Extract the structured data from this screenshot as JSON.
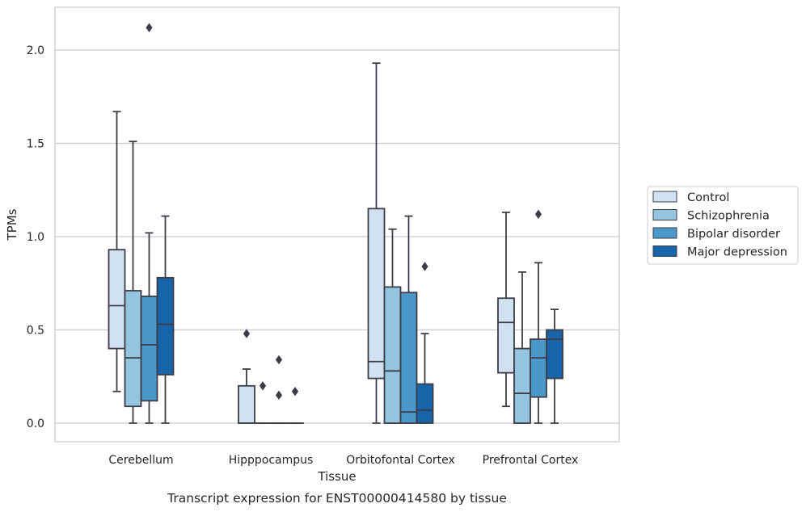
{
  "chart_data": {
    "type": "box",
    "xlabel": "Tissue",
    "ylabel": "TPMs",
    "caption": "Transcript expression for ENST00000414580 by tissue",
    "ylim": [
      -0.1,
      2.25
    ],
    "yticks": [
      0.0,
      0.5,
      1.0,
      1.5,
      2.0
    ],
    "ytick_labels": [
      "0.0",
      "0.5",
      "1.0",
      "1.5",
      "2.0"
    ],
    "grid": "horizontal",
    "legend_position": "right",
    "categories": [
      "Cerebellum",
      "Hipppocampus",
      "Orbitofontal Cortex",
      "Prefrontal Cortex"
    ],
    "series": [
      {
        "name": "Control",
        "color": "#d0e1f2",
        "boxes": [
          {
            "q1": 0.4,
            "median": 0.63,
            "q3": 0.93,
            "whisker_low": 0.17,
            "whisker_high": 1.67,
            "outliers": []
          },
          {
            "q1": 0.0,
            "median": 0.0,
            "q3": 0.2,
            "whisker_low": 0.0,
            "whisker_high": 0.29,
            "outliers": [
              0.48
            ]
          },
          {
            "q1": 0.24,
            "median": 0.33,
            "q3": 1.15,
            "whisker_low": 0.0,
            "whisker_high": 1.93,
            "outliers": []
          },
          {
            "q1": 0.27,
            "median": 0.54,
            "q3": 0.67,
            "whisker_low": 0.09,
            "whisker_high": 1.13,
            "outliers": []
          }
        ]
      },
      {
        "name": "Schizophrenia",
        "color": "#94c4df",
        "boxes": [
          {
            "q1": 0.09,
            "median": 0.35,
            "q3": 0.71,
            "whisker_low": 0.0,
            "whisker_high": 1.51,
            "outliers": []
          },
          {
            "q1": 0.0,
            "median": 0.0,
            "q3": 0.0,
            "whisker_low": 0.0,
            "whisker_high": 0.0,
            "outliers": [
              0.2
            ]
          },
          {
            "q1": 0.0,
            "median": 0.28,
            "q3": 0.73,
            "whisker_low": 0.0,
            "whisker_high": 1.04,
            "outliers": []
          },
          {
            "q1": 0.0,
            "median": 0.16,
            "q3": 0.4,
            "whisker_low": 0.0,
            "whisker_high": 0.81,
            "outliers": []
          }
        ]
      },
      {
        "name": "Bipolar disorder",
        "color": "#4a98c9",
        "boxes": [
          {
            "q1": 0.12,
            "median": 0.42,
            "q3": 0.68,
            "whisker_low": 0.0,
            "whisker_high": 1.02,
            "outliers": [
              2.12
            ]
          },
          {
            "q1": 0.0,
            "median": 0.0,
            "q3": 0.0,
            "whisker_low": 0.0,
            "whisker_high": 0.0,
            "outliers": [
              0.34,
              0.15
            ]
          },
          {
            "q1": 0.0,
            "median": 0.06,
            "q3": 0.7,
            "whisker_low": 0.0,
            "whisker_high": 1.11,
            "outliers": []
          },
          {
            "q1": 0.14,
            "median": 0.35,
            "q3": 0.45,
            "whisker_low": 0.0,
            "whisker_high": 0.86,
            "outliers": [
              1.12
            ]
          }
        ]
      },
      {
        "name": "Major depression",
        "color": "#1764ab",
        "boxes": [
          {
            "q1": 0.26,
            "median": 0.53,
            "q3": 0.78,
            "whisker_low": 0.0,
            "whisker_high": 1.11,
            "outliers": []
          },
          {
            "q1": 0.0,
            "median": 0.0,
            "q3": 0.0,
            "whisker_low": 0.0,
            "whisker_high": 0.0,
            "outliers": [
              0.17
            ]
          },
          {
            "q1": 0.0,
            "median": 0.07,
            "q3": 0.21,
            "whisker_low": 0.0,
            "whisker_high": 0.48,
            "outliers": [
              0.84
            ]
          },
          {
            "q1": 0.24,
            "median": 0.45,
            "q3": 0.5,
            "whisker_low": 0.0,
            "whisker_high": 0.61,
            "outliers": []
          }
        ]
      }
    ],
    "colors": {
      "axis": "#cccccc",
      "grid": "#cccccc",
      "edge": "#3d3d47",
      "text": "#262626"
    }
  }
}
